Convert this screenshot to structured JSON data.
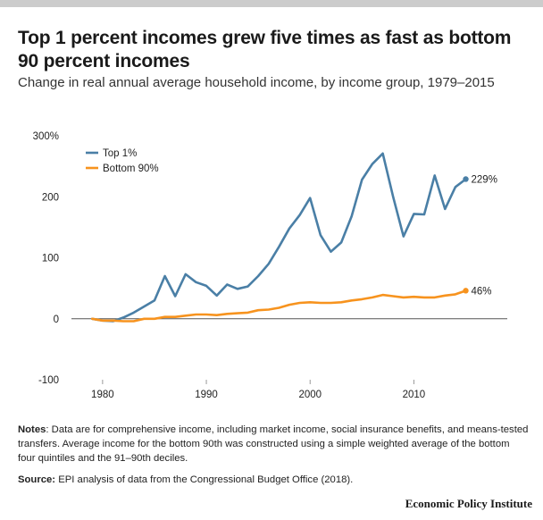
{
  "title": "Top 1 percent incomes grew five times as fast as bottom 90 percent incomes",
  "subtitle": "Change in real annual average household income, by income group, 1979–2015",
  "notes_label": "Notes",
  "notes_text": ": Data are for comprehensive income, including market income, social insurance benefits, and means-tested transfers. Average income for the bottom 90th was constructed using a simple weighted average of the bottom four quintiles and the 91–90th deciles.",
  "source_label": "Source:",
  "source_text": " EPI analysis of data from the Congressional Budget Office (2018).",
  "brand": "Economic Policy Institute",
  "chart_data": {
    "type": "line",
    "title": "Top 1 percent incomes grew five times as fast as bottom 90 percent incomes",
    "subtitle": "Change in real annual average household income, by income group, 1979–2015",
    "xlabel": "",
    "ylabel": "",
    "xlim": [
      1977,
      2019
    ],
    "ylim": [
      -100,
      300
    ],
    "x_ticks": [
      1980,
      1990,
      2000,
      2010
    ],
    "y_ticks": [
      -100,
      0,
      100,
      200,
      300
    ],
    "y_tick_labels": [
      "-100",
      "0",
      "100",
      "200",
      "300%"
    ],
    "grid": false,
    "zero_line": true,
    "legend_position": "top-left",
    "x": [
      1979,
      1980,
      1981,
      1982,
      1983,
      1984,
      1985,
      1986,
      1987,
      1988,
      1989,
      1990,
      1991,
      1992,
      1993,
      1994,
      1995,
      1996,
      1997,
      1998,
      1999,
      2000,
      2001,
      2002,
      2003,
      2004,
      2005,
      2006,
      2007,
      2008,
      2009,
      2010,
      2011,
      2012,
      2013,
      2014,
      2015
    ],
    "series": [
      {
        "name": "Top 1%",
        "color": "#4a7fa6",
        "values": [
          0,
          -3,
          -4,
          2,
          10,
          20,
          30,
          70,
          37,
          73,
          60,
          54,
          38,
          56,
          49,
          53,
          70,
          90,
          118,
          148,
          170,
          198,
          137,
          110,
          125,
          168,
          228,
          254,
          271,
          200,
          135,
          172,
          171,
          235,
          180,
          216,
          229
        ],
        "end_label": "229%"
      },
      {
        "name": "Bottom 90%",
        "color": "#f7931e",
        "values": [
          0,
          -3,
          -3,
          -4,
          -4,
          0,
          0,
          3,
          3,
          5,
          7,
          7,
          6,
          8,
          9,
          10,
          14,
          15,
          18,
          23,
          26,
          27,
          26,
          26,
          27,
          30,
          32,
          35,
          39,
          37,
          35,
          36,
          35,
          35,
          38,
          40,
          46
        ],
        "end_label": "46%"
      }
    ]
  }
}
